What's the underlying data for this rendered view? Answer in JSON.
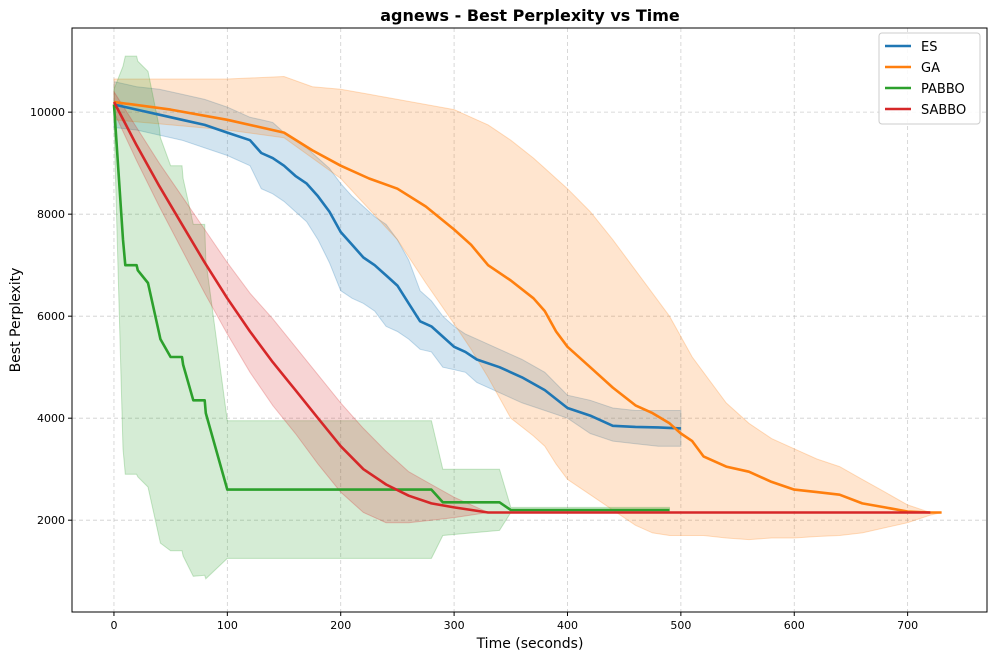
{
  "chart_data": {
    "type": "line",
    "title": "agnews - Best Perplexity vs Time",
    "xlabel": "Time (seconds)",
    "ylabel": "Best Perplexity",
    "xlim": [
      -37,
      770
    ],
    "ylim": [
      200,
      11650
    ],
    "xticks": [
      0,
      100,
      200,
      300,
      400,
      500,
      600,
      700
    ],
    "yticks": [
      2000,
      4000,
      6000,
      8000,
      10000
    ],
    "grid": true,
    "legend_position": "top-right",
    "series": [
      {
        "name": "ES",
        "color": "#1f77b4",
        "x": [
          0,
          20,
          40,
          60,
          80,
          100,
          120,
          130,
          140,
          150,
          160,
          170,
          180,
          190,
          200,
          210,
          220,
          230,
          240,
          250,
          260,
          270,
          280,
          290,
          300,
          310,
          320,
          340,
          360,
          380,
          400,
          420,
          440,
          460,
          480,
          500
        ],
        "y": [
          10150,
          10050,
          9950,
          9850,
          9750,
          9600,
          9450,
          9200,
          9100,
          8950,
          8750,
          8600,
          8350,
          8050,
          7650,
          7400,
          7150,
          7000,
          6800,
          6600,
          6250,
          5900,
          5800,
          5600,
          5400,
          5300,
          5150,
          5000,
          4800,
          4550,
          4200,
          4050,
          3850,
          3830,
          3820,
          3800
        ],
        "lower": [
          9700,
          9650,
          9550,
          9450,
          9300,
          9150,
          8950,
          8500,
          8400,
          8250,
          8050,
          7850,
          7500,
          7050,
          6500,
          6350,
          6250,
          6100,
          5800,
          5700,
          5550,
          5350,
          5300,
          5000,
          4950,
          4900,
          4700,
          4500,
          4300,
          4150,
          4000,
          3700,
          3550,
          3500,
          3450,
          3450
        ],
        "upper": [
          10600,
          10500,
          10450,
          10350,
          10250,
          10100,
          9900,
          9850,
          9800,
          9600,
          9450,
          9300,
          9100,
          8900,
          8600,
          8350,
          8150,
          7950,
          7800,
          7500,
          7100,
          6500,
          6300,
          6000,
          5800,
          5650,
          5550,
          5350,
          5150,
          4900,
          4450,
          4350,
          4200,
          4150,
          4150,
          4150
        ]
      },
      {
        "name": "GA",
        "color": "#ff7f0e",
        "x": [
          0,
          50,
          100,
          150,
          175,
          200,
          225,
          250,
          275,
          300,
          315,
          330,
          350,
          370,
          380,
          390,
          400,
          420,
          440,
          460,
          475,
          490,
          500,
          510,
          520,
          540,
          560,
          580,
          600,
          620,
          640,
          660,
          680,
          700,
          720,
          730
        ],
        "y": [
          10200,
          10050,
          9850,
          9600,
          9250,
          8950,
          8700,
          8500,
          8150,
          7700,
          7400,
          7000,
          6700,
          6350,
          6100,
          5700,
          5400,
          5000,
          4600,
          4250,
          4100,
          3900,
          3700,
          3550,
          3250,
          3050,
          2950,
          2750,
          2600,
          2550,
          2500,
          2330,
          2250,
          2170,
          2150,
          2150
        ],
        "lower": [
          9850,
          9750,
          9650,
          9500,
          9100,
          8700,
          8100,
          7500,
          6650,
          5850,
          5350,
          4800,
          4000,
          3650,
          3450,
          3100,
          2800,
          2500,
          2200,
          1900,
          1750,
          1700,
          1700,
          1700,
          1700,
          1650,
          1620,
          1650,
          1650,
          1680,
          1700,
          1750,
          1850,
          1950,
          2100,
          2150
        ],
        "upper": [
          10650,
          10650,
          10650,
          10700,
          10500,
          10450,
          10350,
          10250,
          10150,
          10050,
          9900,
          9750,
          9450,
          9100,
          8900,
          8700,
          8500,
          8050,
          7500,
          6900,
          6450,
          6000,
          5600,
          5200,
          4900,
          4300,
          3900,
          3600,
          3400,
          3200,
          3050,
          2800,
          2550,
          2300,
          2150,
          2150
        ]
      },
      {
        "name": "PABBO",
        "color": "#2ca02c",
        "x": [
          0,
          8,
          10,
          20,
          21,
          30,
          40,
          41,
          50,
          60,
          61,
          70,
          80,
          81,
          100,
          150,
          280,
          290,
          340,
          350,
          490
        ],
        "y": [
          10150,
          7500,
          7000,
          7000,
          6900,
          6650,
          5650,
          5550,
          5200,
          5200,
          5050,
          4350,
          4350,
          4100,
          2600,
          2600,
          2600,
          2350,
          2350,
          2200,
          2200
        ],
        "lower": [
          9800,
          3400,
          2900,
          2900,
          2850,
          2650,
          1650,
          1550,
          1400,
          1400,
          1300,
          900,
          920,
          850,
          1250,
          1250,
          1250,
          1700,
          1800,
          2150,
          2150
        ],
        "upper": [
          10450,
          10900,
          11100,
          11100,
          11000,
          10800,
          9700,
          9500,
          8950,
          8950,
          8700,
          7800,
          7800,
          7100,
          3950,
          3950,
          3950,
          3000,
          3000,
          2250,
          2250
        ]
      },
      {
        "name": "SABBO",
        "color": "#d62728",
        "x": [
          0,
          20,
          40,
          60,
          80,
          100,
          120,
          140,
          160,
          180,
          200,
          220,
          240,
          260,
          280,
          300,
          330,
          400,
          500,
          600,
          700,
          720
        ],
        "y": [
          10200,
          9350,
          8550,
          7800,
          7050,
          6350,
          5700,
          5100,
          4550,
          4000,
          3450,
          3000,
          2700,
          2480,
          2330,
          2250,
          2150,
          2150,
          2150,
          2150,
          2150,
          2150
        ],
        "lower": [
          10000,
          9050,
          8150,
          7300,
          6450,
          5650,
          4900,
          4250,
          3700,
          3100,
          2550,
          2150,
          1950,
          1950,
          2000,
          2050,
          2150,
          2150,
          2150,
          2150,
          2150,
          2150
        ],
        "upper": [
          10400,
          9700,
          9000,
          8350,
          7700,
          7050,
          6450,
          5950,
          5400,
          4850,
          4300,
          3800,
          3350,
          2950,
          2700,
          2450,
          2150,
          2150,
          2150,
          2150,
          2150,
          2150
        ]
      }
    ]
  }
}
